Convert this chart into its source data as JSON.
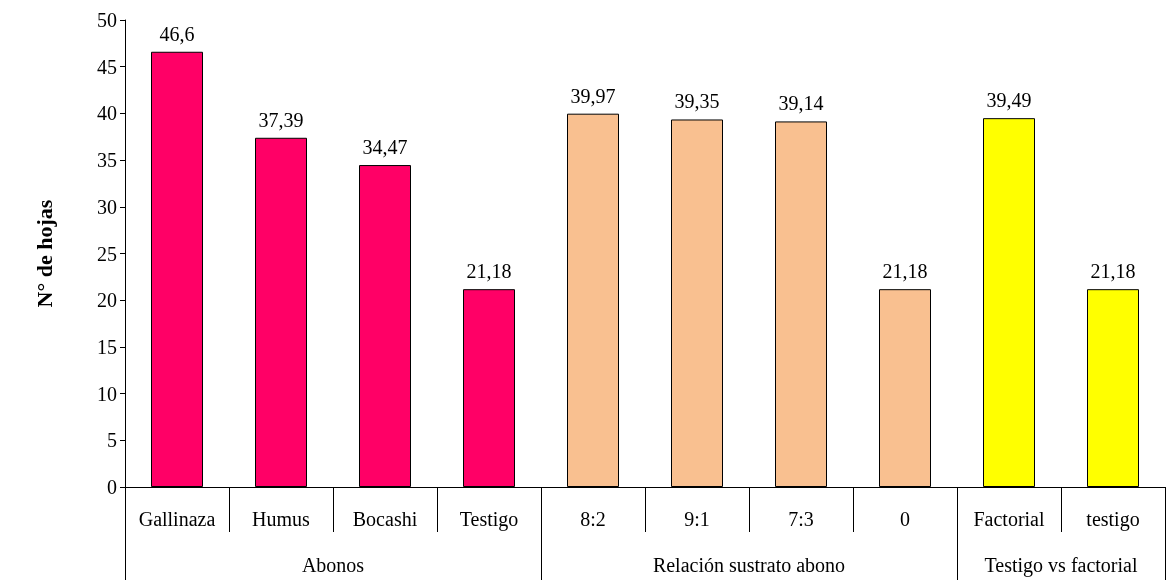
{
  "chart_data": {
    "type": "bar",
    "ylabel": "N° de hojas",
    "categories": [
      "Gallinaza",
      "Humus",
      "Bocashi",
      "Testigo",
      "8:2",
      "9:1",
      "7:3",
      "0",
      "Factorial",
      "testigo"
    ],
    "series": [
      {
        "name": "Abonos",
        "color": "#ff0066",
        "values": [
          46.6,
          37.39,
          34.47,
          21.18,
          null,
          null,
          null,
          null,
          null,
          null
        ],
        "value_labels": [
          "46,6",
          "37,39",
          "34,47",
          "21,18",
          null,
          null,
          null,
          null,
          null,
          null
        ]
      },
      {
        "name": "Relación sustrato abono",
        "color": "#f9c090",
        "values": [
          null,
          null,
          null,
          null,
          39.97,
          39.35,
          39.14,
          21.18,
          null,
          null
        ],
        "value_labels": [
          null,
          null,
          null,
          null,
          "39,97",
          "39,35",
          "39,14",
          "21,18",
          null,
          null
        ]
      },
      {
        "name": "Testigo vs factorial",
        "color": "#ffff00",
        "values": [
          null,
          null,
          null,
          null,
          null,
          null,
          null,
          null,
          39.49,
          21.18
        ],
        "value_labels": [
          null,
          null,
          null,
          null,
          null,
          null,
          null,
          null,
          "39,49",
          "21,18"
        ]
      }
    ],
    "ylim": [
      0,
      50
    ],
    "yticks": [
      0,
      5,
      10,
      15,
      20,
      25,
      30,
      35,
      40,
      45,
      50
    ],
    "grid": false,
    "legend": "bottom"
  }
}
